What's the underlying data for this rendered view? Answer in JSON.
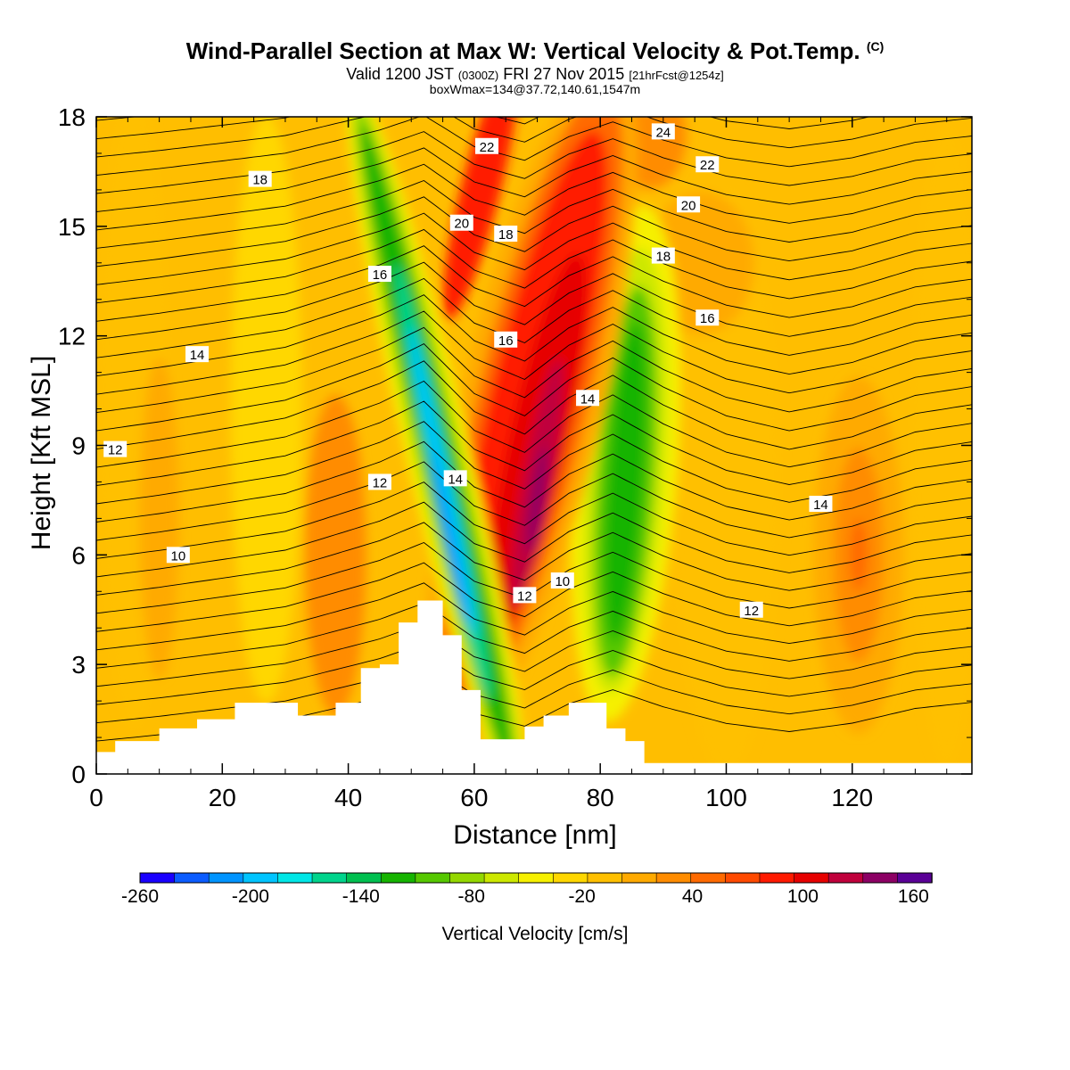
{
  "title": {
    "main": "Wind-Parallel Section at Max W: Vertical Velocity & Pot.Temp.",
    "copyright": "(C)",
    "valid_prefix": "Valid 1200 JST",
    "valid_zulu": "(0300Z)",
    "valid_date": "FRI 27 Nov 2015",
    "forecast": "[21hrFcst@1254z]",
    "box_info": "boxWmax=134@37.72,140.61,1547m"
  },
  "chart_data": {
    "type": "heatmap",
    "xlabel": "Distance [nm]",
    "ylabel": "Height [Kft MSL]",
    "xlim": [
      0,
      139
    ],
    "ylim": [
      0,
      18
    ],
    "x_ticks": [
      0,
      20,
      40,
      60,
      80,
      100,
      120
    ],
    "y_ticks": [
      0,
      3,
      6,
      9,
      12,
      15,
      18
    ],
    "colorbar": {
      "title": "Vertical Velocity [cm/s]",
      "bounds": [
        -260,
        170
      ],
      "labels": [
        -260,
        -200,
        -140,
        -80,
        -20,
        40,
        100,
        160
      ],
      "colors": [
        "#1a00ff",
        "#0b5cff",
        "#0094ff",
        "#00c4ff",
        "#00e6e6",
        "#00d48c",
        "#00c050",
        "#16b400",
        "#56c800",
        "#94d800",
        "#cde800",
        "#f6f000",
        "#ffd700",
        "#ffc000",
        "#ffaa00",
        "#ff8c00",
        "#ff6a00",
        "#ff4a00",
        "#ff1a00",
        "#e60000",
        "#c0003c",
        "#8c0064",
        "#5a0096"
      ]
    },
    "vertical_velocity_features": [
      {
        "kind": "downdraft",
        "x_center": 55,
        "height_center": 9,
        "min_cm_s": -200
      },
      {
        "kind": "updraft",
        "x_center": 70,
        "height_center": 7.5,
        "max_cm_s": 170
      },
      {
        "kind": "downdraft",
        "x_center": 84,
        "height_center": 8,
        "min_cm_s": -90
      },
      {
        "kind": "updraft",
        "x_center": 121,
        "height_center": 6,
        "max_cm_s": 70
      },
      {
        "kind": "updraft",
        "x_center": 40,
        "height_center": 6,
        "max_cm_s": 50
      }
    ],
    "terrain_profile": {
      "x": [
        0,
        3,
        10,
        16,
        22,
        32,
        38,
        42,
        45,
        48,
        51,
        55,
        58,
        61,
        68,
        71,
        75,
        81,
        84,
        87,
        139
      ],
      "height": [
        0.6,
        0.9,
        1.25,
        1.5,
        1.95,
        1.6,
        1.95,
        2.9,
        3.0,
        4.15,
        4.75,
        3.8,
        2.3,
        0.95,
        1.3,
        1.6,
        1.95,
        1.25,
        0.9,
        0.3,
        0.3
      ]
    },
    "theta_contour_labels": [
      {
        "value": "24",
        "x": 90,
        "y": 17.6
      },
      {
        "value": "22",
        "x": 62,
        "y": 17.2
      },
      {
        "value": "22",
        "x": 97,
        "y": 16.7
      },
      {
        "value": "20",
        "x": 58,
        "y": 15.1
      },
      {
        "value": "20",
        "x": 94,
        "y": 15.6
      },
      {
        "value": "18",
        "x": 26,
        "y": 16.3
      },
      {
        "value": "18",
        "x": 65,
        "y": 14.8
      },
      {
        "value": "18",
        "x": 90,
        "y": 14.2
      },
      {
        "value": "16",
        "x": 45,
        "y": 13.7
      },
      {
        "value": "16",
        "x": 65,
        "y": 11.9
      },
      {
        "value": "16",
        "x": 97,
        "y": 12.5
      },
      {
        "value": "14",
        "x": 16,
        "y": 11.5
      },
      {
        "value": "14",
        "x": 78,
        "y": 10.3
      },
      {
        "value": "14",
        "x": 57,
        "y": 8.1
      },
      {
        "value": "14",
        "x": 115,
        "y": 7.4
      },
      {
        "value": "12",
        "x": 3,
        "y": 8.9
      },
      {
        "value": "12",
        "x": 45,
        "y": 8.0
      },
      {
        "value": "12",
        "x": 68,
        "y": 4.9
      },
      {
        "value": "12",
        "x": 104,
        "y": 4.5
      },
      {
        "value": "10",
        "x": 13,
        "y": 6.0
      },
      {
        "value": "10",
        "x": 74,
        "y": 5.3
      }
    ]
  }
}
